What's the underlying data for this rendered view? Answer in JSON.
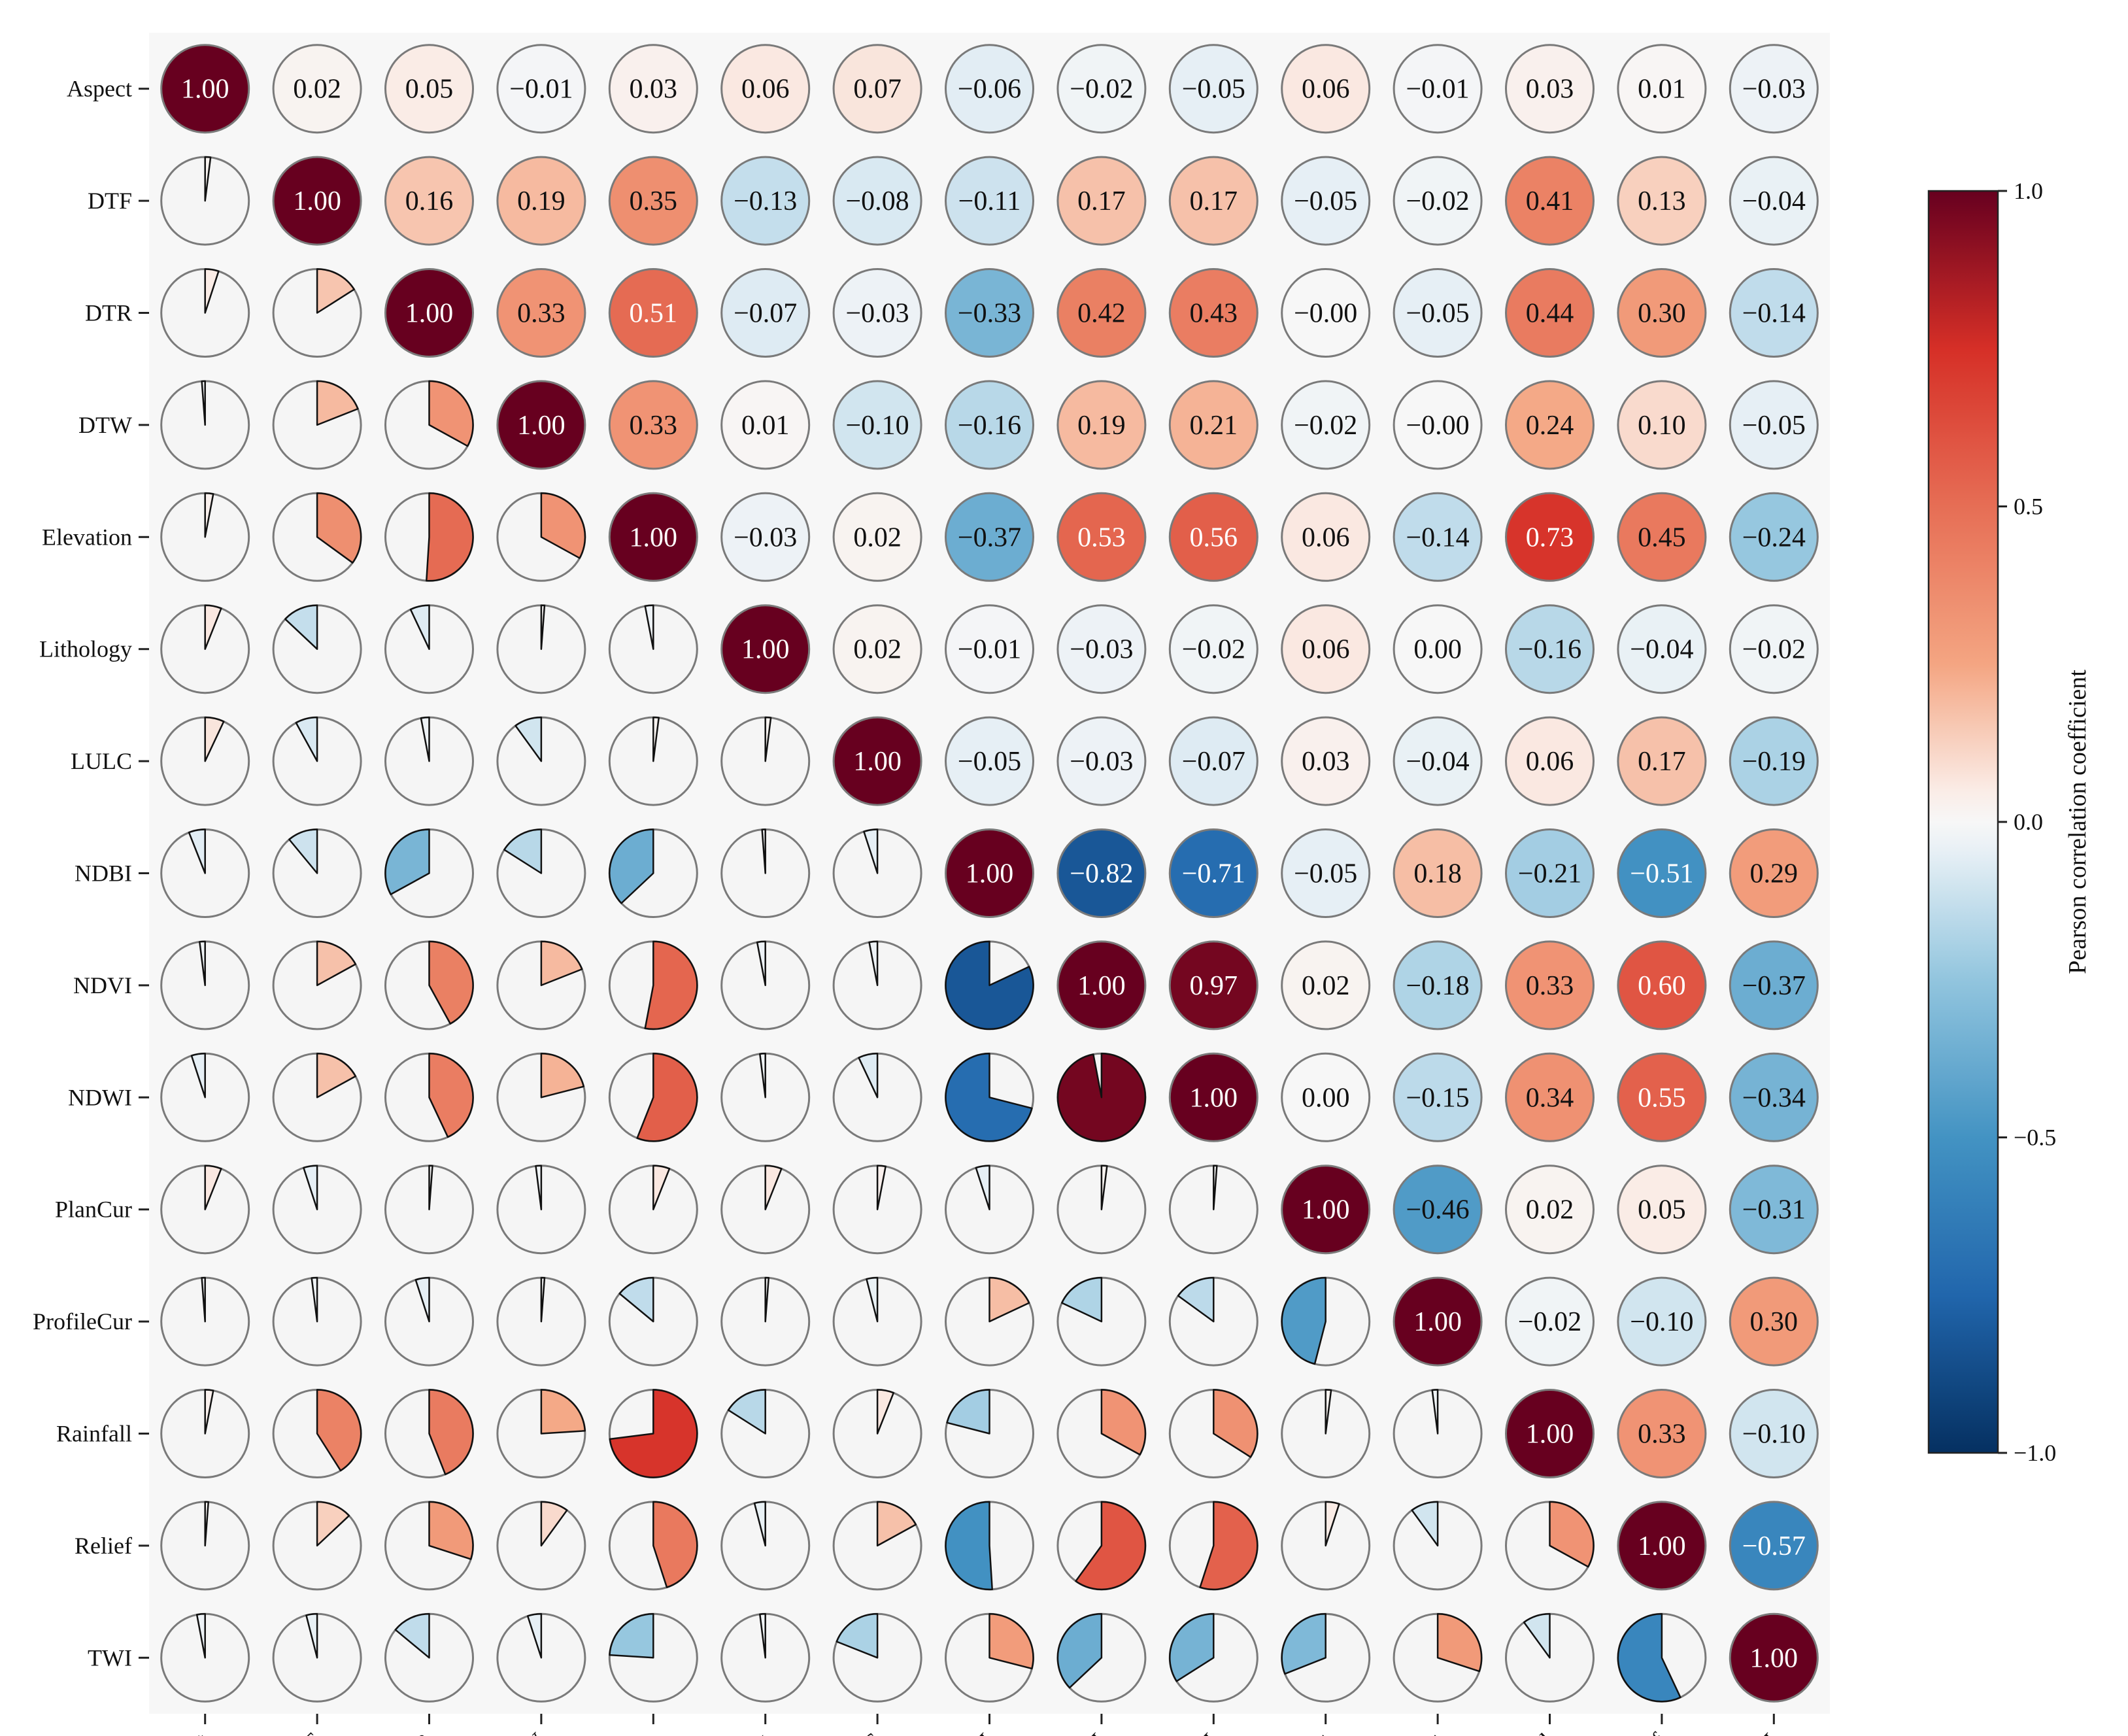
{
  "chart_data": {
    "type": "heatmap",
    "variables": [
      "Aspect",
      "DTF",
      "DTR",
      "DTW",
      "Elevation",
      "Lithology",
      "LULC",
      "NDBI",
      "NDVI",
      "NDWI",
      "PlanCur",
      "ProfileCur",
      "Rainfall",
      "Relief",
      "TWI"
    ],
    "matrix": [
      [
        1.0,
        0.02,
        0.05,
        -0.01,
        0.03,
        0.06,
        0.07,
        -0.06,
        -0.02,
        -0.05,
        0.06,
        -0.01,
        0.03,
        0.01,
        -0.03
      ],
      [
        0.02,
        1.0,
        0.16,
        0.19,
        0.35,
        -0.13,
        -0.08,
        -0.11,
        0.17,
        0.17,
        -0.05,
        -0.02,
        0.41,
        0.13,
        -0.04
      ],
      [
        0.05,
        0.16,
        1.0,
        0.33,
        0.51,
        -0.07,
        -0.03,
        -0.33,
        0.42,
        0.43,
        -0.0,
        -0.05,
        0.44,
        0.3,
        -0.14
      ],
      [
        -0.01,
        0.19,
        0.33,
        1.0,
        0.33,
        0.01,
        -0.1,
        -0.16,
        0.19,
        0.21,
        -0.02,
        -0.0,
        0.24,
        0.1,
        -0.05
      ],
      [
        0.03,
        0.35,
        0.51,
        0.33,
        1.0,
        -0.03,
        0.02,
        -0.37,
        0.53,
        0.56,
        0.06,
        -0.14,
        0.73,
        0.45,
        -0.24
      ],
      [
        0.06,
        -0.13,
        -0.07,
        0.01,
        -0.03,
        1.0,
        0.02,
        -0.01,
        -0.03,
        -0.02,
        0.06,
        0.0,
        -0.16,
        -0.04,
        -0.02
      ],
      [
        0.07,
        -0.08,
        -0.03,
        -0.1,
        0.02,
        0.02,
        1.0,
        -0.05,
        -0.03,
        -0.07,
        0.03,
        -0.04,
        0.06,
        0.17,
        -0.19
      ],
      [
        -0.06,
        -0.11,
        -0.33,
        -0.16,
        -0.37,
        -0.01,
        -0.05,
        1.0,
        -0.82,
        -0.71,
        -0.05,
        0.18,
        -0.21,
        -0.51,
        0.29
      ],
      [
        -0.02,
        0.17,
        0.42,
        0.19,
        0.53,
        -0.03,
        -0.03,
        -0.82,
        1.0,
        0.97,
        0.02,
        -0.18,
        0.33,
        0.6,
        -0.37
      ],
      [
        -0.05,
        0.17,
        0.43,
        0.21,
        0.56,
        -0.02,
        -0.07,
        -0.71,
        0.97,
        1.0,
        0.0,
        -0.15,
        0.34,
        0.55,
        -0.34
      ],
      [
        0.06,
        -0.05,
        -0.0,
        -0.02,
        0.06,
        0.06,
        0.03,
        -0.05,
        0.02,
        0.0,
        1.0,
        -0.46,
        0.02,
        0.05,
        -0.31
      ],
      [
        -0.01,
        -0.02,
        -0.05,
        -0.0,
        -0.14,
        0.0,
        -0.04,
        0.18,
        -0.18,
        -0.15,
        -0.46,
        1.0,
        -0.02,
        -0.1,
        0.3
      ],
      [
        0.03,
        0.41,
        0.44,
        0.24,
        0.73,
        -0.16,
        0.06,
        -0.21,
        0.33,
        0.34,
        0.02,
        -0.02,
        1.0,
        0.33,
        -0.1
      ],
      [
        0.01,
        0.13,
        0.3,
        0.1,
        0.45,
        -0.04,
        0.17,
        -0.51,
        0.6,
        0.55,
        0.05,
        -0.1,
        0.33,
        1.0,
        -0.57
      ],
      [
        -0.03,
        -0.04,
        -0.14,
        -0.05,
        -0.24,
        -0.02,
        -0.19,
        0.29,
        -0.37,
        -0.34,
        -0.31,
        0.3,
        -0.1,
        -0.57,
        1.0
      ]
    ],
    "upper_triangle": "circles with numeric values",
    "lower_triangle": "pie wedges proportional to |r|",
    "value_range": [
      -1.0,
      1.0
    ],
    "colormap": "RdBu_r",
    "colorbar": {
      "label": "Pearson correlation coefficient",
      "ticks": [
        1.0,
        0.5,
        0.0,
        -0.5,
        -1.0
      ],
      "tick_labels": [
        "1.0",
        "0.5",
        "0.0",
        "−0.5",
        "−1.0"
      ],
      "placement": "right"
    },
    "grid": false
  }
}
